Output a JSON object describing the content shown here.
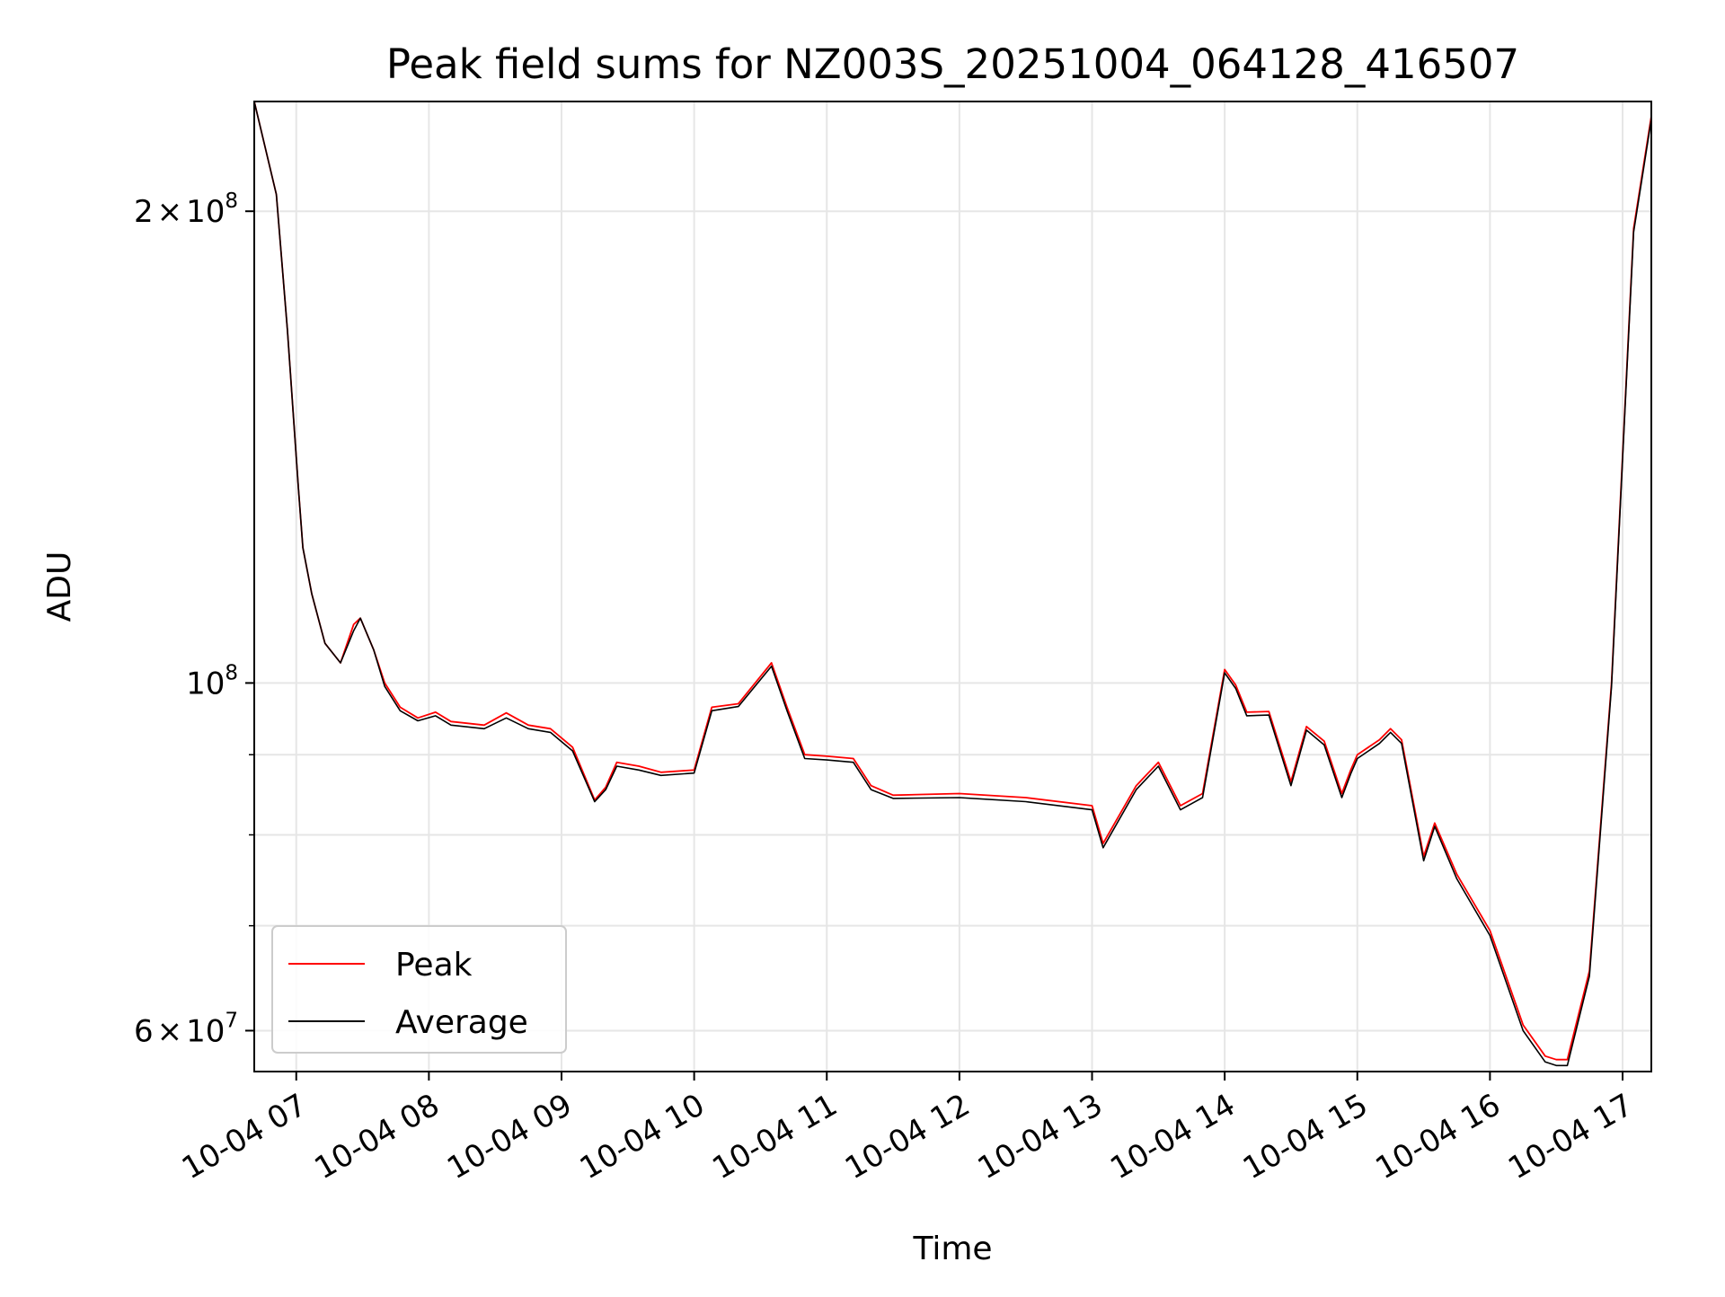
{
  "chart_data": {
    "type": "line",
    "title": "Peak field sums for NZ003S_20251004_064128_416507",
    "xlabel": "Time",
    "ylabel": "ADU",
    "yscale": "log",
    "xlim": [
      "10-04 06:41",
      "10-04 17:13"
    ],
    "ylim": [
      56500000,
      235000000
    ],
    "grid": true,
    "legend": "lower-left",
    "x_ticks": [
      {
        "value": "10-04 07:00",
        "label": "10-04 07"
      },
      {
        "value": "10-04 08:00",
        "label": "10-04 08"
      },
      {
        "value": "10-04 09:00",
        "label": "10-04 09"
      },
      {
        "value": "10-04 10:00",
        "label": "10-04 10"
      },
      {
        "value": "10-04 11:00",
        "label": "10-04 11"
      },
      {
        "value": "10-04 12:00",
        "label": "10-04 12"
      },
      {
        "value": "10-04 13:00",
        "label": "10-04 13"
      },
      {
        "value": "10-04 14:00",
        "label": "10-04 14"
      },
      {
        "value": "10-04 15:00",
        "label": "10-04 15"
      },
      {
        "value": "10-04 16:00",
        "label": "10-04 16"
      },
      {
        "value": "10-04 17:00",
        "label": "10-04 17"
      }
    ],
    "y_ticks": [
      {
        "value": 200000000,
        "mantissa": "2",
        "times": "×",
        "base": "10",
        "exp": "8"
      },
      {
        "value": 100000000,
        "mantissa": "",
        "times": "",
        "base": "10",
        "exp": "8"
      },
      {
        "value": 60000000,
        "mantissa": "6",
        "times": "×",
        "base": "10",
        "exp": "7"
      }
    ],
    "y_minor_ticks": [
      70000000,
      80000000,
      90000000
    ],
    "series": [
      {
        "name": "Peak",
        "color": "#ff0000",
        "x": [
          "10-04 06:41",
          "10-04 06:51",
          "10-04 06:56",
          "10-04 07:01",
          "10-04 07:03",
          "10-04 07:07",
          "10-04 07:13",
          "10-04 07:20",
          "10-04 07:26",
          "10-04 07:29",
          "10-04 07:35",
          "10-04 07:40",
          "10-04 07:47",
          "10-04 07:55",
          "10-04 08:03",
          "10-04 08:10",
          "10-04 08:25",
          "10-04 08:35",
          "10-04 08:45",
          "10-04 08:55",
          "10-04 09:05",
          "10-04 09:15",
          "10-04 09:20",
          "10-04 09:25",
          "10-04 09:35",
          "10-04 09:45",
          "10-04 10:00",
          "10-04 10:08",
          "10-04 10:20",
          "10-04 10:35",
          "10-04 10:42",
          "10-04 10:50",
          "10-04 11:00",
          "10-04 11:12",
          "10-04 11:20",
          "10-04 11:30",
          "10-04 12:00",
          "10-04 12:30",
          "10-04 13:00",
          "10-04 13:05",
          "10-04 13:20",
          "10-04 13:30",
          "10-04 13:40",
          "10-04 13:50",
          "10-04 14:00",
          "10-04 14:05",
          "10-04 14:10",
          "10-04 14:20",
          "10-04 14:30",
          "10-04 14:37",
          "10-04 14:45",
          "10-04 14:53",
          "10-04 14:57",
          "10-04 15:00",
          "10-04 15:10",
          "10-04 15:15",
          "10-04 15:20",
          "10-04 15:30",
          "10-04 15:35",
          "10-04 15:45",
          "10-04 16:00",
          "10-04 16:15",
          "10-04 16:25",
          "10-04 16:30",
          "10-04 16:35",
          "10-04 16:45",
          "10-04 16:55",
          "10-04 17:05",
          "10-04 17:13"
        ],
        "y": [
          235000000,
          205000000,
          168000000,
          133000000,
          122000000,
          114000000,
          106000000,
          103000000,
          109000000,
          110000000,
          105000000,
          100000000,
          96500000,
          95000000,
          95800000,
          94500000,
          94000000,
          95700000,
          94000000,
          93500000,
          91000000,
          84200000,
          85800000,
          89000000,
          88500000,
          87700000,
          88000000,
          96500000,
          97000000,
          103000000,
          96500000,
          90000000,
          89800000,
          89500000,
          86000000,
          84800000,
          85000000,
          84500000,
          83500000,
          79000000,
          86000000,
          89000000,
          83500000,
          85000000,
          102000000,
          99700000,
          95800000,
          95900000,
          86500000,
          93800000,
          91800000,
          85000000,
          88000000,
          90000000,
          92000000,
          93500000,
          92000000,
          77500000,
          81400000,
          75500000,
          69500000,
          60500000,
          57800000,
          57500000,
          57500000,
          65500000,
          100000000,
          195000000,
          230000000
        ]
      },
      {
        "name": "Average",
        "color": "#000000",
        "x": [
          "10-04 06:41",
          "10-04 06:51",
          "10-04 06:56",
          "10-04 07:01",
          "10-04 07:03",
          "10-04 07:07",
          "10-04 07:13",
          "10-04 07:20",
          "10-04 07:26",
          "10-04 07:29",
          "10-04 07:35",
          "10-04 07:40",
          "10-04 07:47",
          "10-04 07:55",
          "10-04 08:03",
          "10-04 08:10",
          "10-04 08:25",
          "10-04 08:35",
          "10-04 08:45",
          "10-04 08:55",
          "10-04 09:05",
          "10-04 09:15",
          "10-04 09:20",
          "10-04 09:25",
          "10-04 09:35",
          "10-04 09:45",
          "10-04 10:00",
          "10-04 10:08",
          "10-04 10:20",
          "10-04 10:35",
          "10-04 10:42",
          "10-04 10:50",
          "10-04 11:00",
          "10-04 11:12",
          "10-04 11:20",
          "10-04 11:30",
          "10-04 12:00",
          "10-04 12:30",
          "10-04 13:00",
          "10-04 13:05",
          "10-04 13:20",
          "10-04 13:30",
          "10-04 13:40",
          "10-04 13:50",
          "10-04 14:00",
          "10-04 14:05",
          "10-04 14:10",
          "10-04 14:20",
          "10-04 14:30",
          "10-04 14:37",
          "10-04 14:45",
          "10-04 14:53",
          "10-04 14:57",
          "10-04 15:00",
          "10-04 15:10",
          "10-04 15:15",
          "10-04 15:20",
          "10-04 15:30",
          "10-04 15:35",
          "10-04 15:45",
          "10-04 16:00",
          "10-04 16:15",
          "10-04 16:25",
          "10-04 16:30",
          "10-04 16:35",
          "10-04 16:45",
          "10-04 16:55",
          "10-04 17:05",
          "10-04 17:13"
        ],
        "y": [
          235000000,
          205000000,
          168000000,
          133000000,
          122000000,
          114000000,
          106000000,
          103000000,
          108000000,
          110000000,
          105000000,
          99500000,
          96000000,
          94600000,
          95300000,
          94000000,
          93500000,
          95000000,
          93500000,
          93000000,
          90500000,
          84000000,
          85500000,
          88500000,
          88000000,
          87300000,
          87600000,
          96000000,
          96600000,
          102500000,
          96000000,
          89500000,
          89300000,
          89000000,
          85500000,
          84400000,
          84500000,
          84000000,
          83000000,
          78500000,
          85500000,
          88500000,
          83000000,
          84500000,
          101500000,
          99200000,
          95300000,
          95400000,
          86000000,
          93300000,
          91300000,
          84500000,
          87500000,
          89500000,
          91500000,
          93000000,
          91500000,
          77000000,
          81000000,
          75000000,
          69000000,
          60000000,
          57300000,
          57000000,
          57000000,
          65000000,
          99500000,
          194000000,
          229000000
        ]
      }
    ]
  }
}
